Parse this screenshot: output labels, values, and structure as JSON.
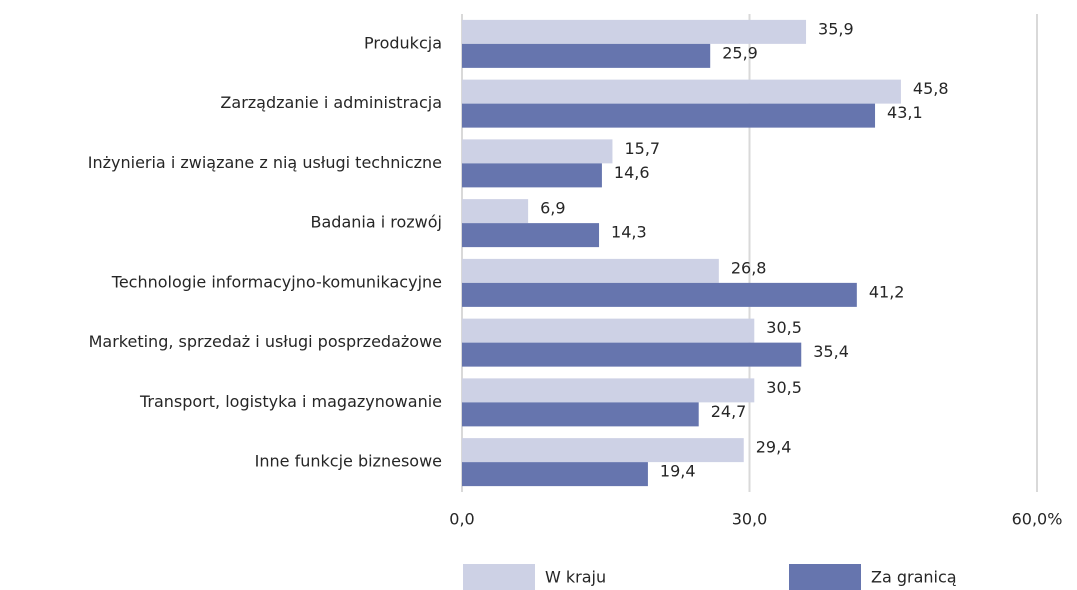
{
  "chart_data": {
    "type": "bar",
    "orientation": "horizontal",
    "categories": [
      "Produkcja",
      "Zarządzanie i administracja",
      "Inżynieria i związane z nią usługi techniczne",
      "Badania i rozwój",
      "Technologie informacyjno-komunikacyjne",
      "Marketing, sprzedaż i usługi posprzedażowe",
      "Transport, logistyka i magazynowanie",
      "Inne funkcje biznesowe"
    ],
    "series": [
      {
        "name": "W kraju",
        "color": "#cdd1e5",
        "values": [
          35.9,
          45.8,
          15.7,
          6.9,
          26.8,
          30.5,
          30.5,
          29.4
        ],
        "value_labels": [
          "35,9",
          "45,8",
          "15,7",
          "6,9",
          "26,8",
          "30,5",
          "30,5",
          "29,4"
        ]
      },
      {
        "name": "Za granicą",
        "color": "#6675ae",
        "values": [
          25.9,
          43.1,
          14.6,
          14.3,
          41.2,
          35.4,
          24.7,
          19.4
        ],
        "value_labels": [
          "25,9",
          "43,1",
          "14,6",
          "14,3",
          "41,2",
          "35,4",
          "24,7",
          "19,4"
        ]
      }
    ],
    "xlim": [
      0,
      60
    ],
    "xticks": [
      {
        "value": 0,
        "label": "0,0"
      },
      {
        "value": 30,
        "label": "30,0"
      },
      {
        "value": 60,
        "label": "60,0%"
      }
    ],
    "grid": true,
    "legend": "bottom"
  }
}
